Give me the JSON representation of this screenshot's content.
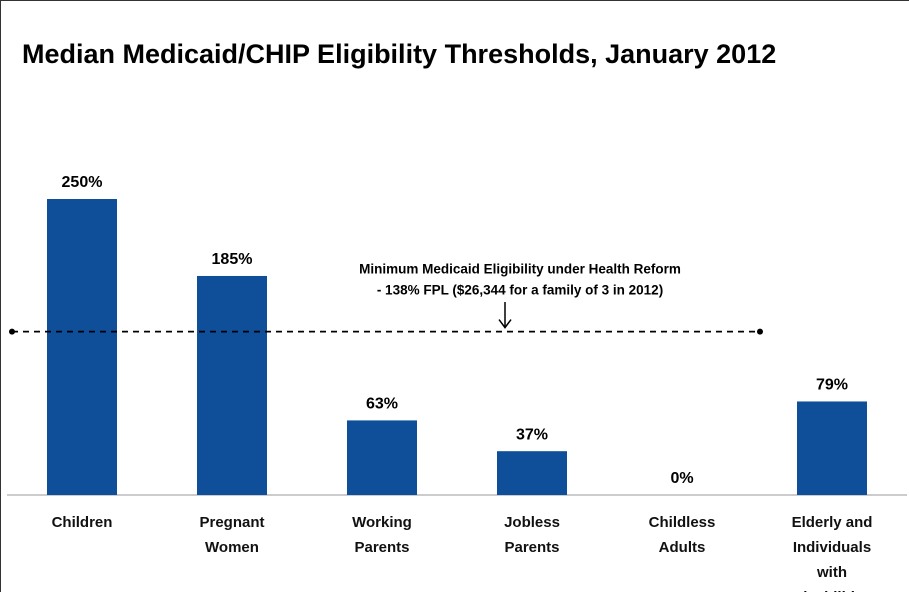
{
  "chart_data": {
    "type": "bar",
    "title": "Median Medicaid/CHIP Eligibility Thresholds, January 2012",
    "categories": [
      "Children",
      "Pregnant Women",
      "Working Parents",
      "Jobless Parents",
      "Childless Adults",
      "Elderly and Individuals with Disabilities"
    ],
    "values": [
      250,
      185,
      63,
      37,
      0,
      79
    ],
    "value_labels": [
      "250%",
      "185%",
      "63%",
      "37%",
      "0%",
      "79%"
    ],
    "color": "#0f4f9a",
    "ylim": [
      0,
      250
    ],
    "annotation": {
      "value": 138,
      "lines": [
        "Minimum Medicaid Eligibility under Health Reform",
        "- 138% FPL  ($26,344 for a family of 3 in 2012)"
      ]
    }
  }
}
